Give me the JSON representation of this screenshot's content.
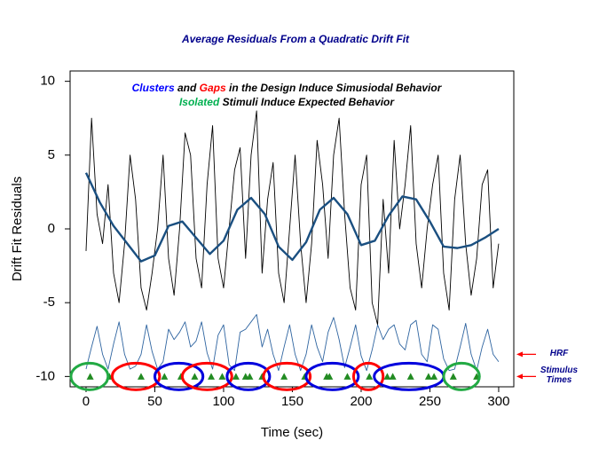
{
  "chart_data": {
    "type": "line",
    "title": "Average Residuals From a Quadratic Drift Fit",
    "x_label": "Time (sec)",
    "y_label": "Drift Fit Residuals",
    "annotation_lines": [
      [
        {
          "text": "Clusters",
          "color": "#0000ff"
        },
        {
          "text": " and ",
          "color": "#000000"
        },
        {
          "text": "Gaps",
          "color": "#ff0000"
        },
        {
          "text": " in the Design Induce Simusiodal Behavior",
          "color": "#000000"
        }
      ],
      [
        {
          "text": "Isolated",
          "color": "#00b050"
        },
        {
          "text": " Stimuli Induce Expected Behavior",
          "color": "#000000"
        }
      ]
    ],
    "side_labels": [
      {
        "text": "HRF",
        "y": -8.5
      },
      {
        "text": "Stimulus Times",
        "y": -10
      }
    ],
    "arrow_color": "#ff0000",
    "xlim": [
      -11.6,
      311
    ],
    "ylim": [
      -10.7,
      10.7
    ],
    "xticks": [
      0,
      50,
      100,
      150,
      200,
      250,
      300
    ],
    "yticks": [
      -10,
      -5,
      0,
      5,
      10
    ],
    "series": [
      {
        "color": "#000000",
        "line_width": 0.9,
        "x": [
          0,
          4,
          8,
          12,
          16,
          20,
          24,
          28,
          32,
          36,
          40,
          44,
          48,
          52,
          56,
          60,
          64,
          68,
          72,
          76,
          80,
          84,
          88,
          92,
          96,
          100,
          104,
          108,
          112,
          116,
          120,
          124,
          128,
          132,
          136,
          140,
          144,
          148,
          152,
          156,
          160,
          164,
          168,
          172,
          176,
          180,
          184,
          188,
          192,
          196,
          200,
          204,
          208,
          212,
          216,
          220,
          224,
          228,
          232,
          236,
          240,
          244,
          248,
          252,
          256,
          260,
          264,
          268,
          272,
          276,
          280,
          284,
          288,
          292,
          296,
          300
        ],
        "values": [
          -1.5,
          7.5,
          1,
          -1,
          3,
          -3,
          -5,
          -1,
          5,
          2,
          -4,
          -5.5,
          -3,
          0,
          5,
          -2,
          -4.5,
          0,
          6.5,
          5,
          -2,
          -4,
          3,
          7,
          -2,
          -4,
          0,
          4,
          5.5,
          -2,
          5,
          8,
          -3,
          2,
          4.5,
          -3,
          -5,
          0,
          5,
          -1,
          -5,
          -1,
          6,
          3,
          -2,
          5,
          7.5,
          1,
          -4,
          -5.5,
          3,
          5,
          -5,
          -6.5,
          2,
          -3,
          6,
          0,
          3,
          7,
          -1,
          -4,
          0,
          3,
          5,
          -3,
          -5.5,
          2,
          5,
          -1,
          -4.5,
          -2,
          3,
          4,
          -4,
          -1
        ]
      },
      {
        "color": "#1a4f80",
        "line_width": 2.4,
        "x": [
          0,
          10,
          20,
          30,
          40,
          50,
          60,
          70,
          80,
          90,
          100,
          110,
          120,
          130,
          140,
          150,
          160,
          170,
          180,
          190,
          200,
          210,
          220,
          230,
          240,
          250,
          260,
          270,
          280,
          290,
          300
        ],
        "values": [
          3.8,
          1.8,
          0.2,
          -1.0,
          -2.2,
          -1.8,
          0.2,
          0.5,
          -0.6,
          -1.7,
          -0.8,
          1.3,
          2.1,
          1.0,
          -1.2,
          -2.1,
          -0.9,
          1.3,
          2.1,
          1.0,
          -1.1,
          -0.8,
          0.9,
          2.2,
          2.0,
          0.5,
          -1.2,
          -1.3,
          -1.1,
          -0.6,
          0.0
        ]
      },
      {
        "color": "#2e64a0",
        "line_width": 0.9,
        "x": [
          0,
          4,
          8,
          12,
          16,
          20,
          24,
          28,
          32,
          36,
          40,
          44,
          48,
          52,
          56,
          60,
          64,
          68,
          72,
          76,
          80,
          84,
          88,
          92,
          96,
          100,
          104,
          108,
          112,
          116,
          120,
          124,
          128,
          132,
          136,
          140,
          144,
          148,
          152,
          156,
          160,
          164,
          168,
          172,
          176,
          180,
          184,
          188,
          192,
          196,
          200,
          204,
          208,
          212,
          216,
          220,
          224,
          228,
          232,
          236,
          240,
          244,
          248,
          252,
          256,
          260,
          264,
          268,
          272,
          276,
          280,
          284,
          288,
          292,
          296,
          300
        ],
        "values": [
          -9.5,
          -8,
          -6.6,
          -8.5,
          -9.5,
          -7.8,
          -6.3,
          -8.5,
          -9.5,
          -9.3,
          -8.5,
          -6.5,
          -8.3,
          -9.5,
          -9,
          -6.8,
          -7.5,
          -7,
          -6.3,
          -8,
          -7.6,
          -6.3,
          -8.4,
          -9.5,
          -7.2,
          -6.5,
          -9.2,
          -9.6,
          -7,
          -6.8,
          -6.3,
          -5.8,
          -8,
          -6.8,
          -8.5,
          -9.6,
          -8,
          -6.5,
          -8.5,
          -9.6,
          -8.5,
          -6.5,
          -8,
          -9,
          -7,
          -6,
          -7.5,
          -9.4,
          -8,
          -6.5,
          -8.6,
          -9.6,
          -8.2,
          -6.5,
          -7.5,
          -6.8,
          -6.5,
          -7.8,
          -8.2,
          -6.5,
          -6.2,
          -8.5,
          -9,
          -6.5,
          -6.8,
          -8.8,
          -9.6,
          -9.5,
          -8,
          -6.4,
          -8.5,
          -9.6,
          -8,
          -6.8,
          -8.5,
          -9
        ]
      }
    ],
    "stimulus": {
      "color": "#228b22",
      "y": -10,
      "x": [
        3,
        17,
        40,
        57,
        69,
        79,
        91,
        99,
        109,
        116,
        119,
        128,
        144,
        159,
        175,
        177,
        190,
        206,
        219,
        223,
        236,
        249,
        253,
        267,
        284
      ]
    },
    "regions": [
      {
        "start": -11,
        "end": 16,
        "color": "#22aa44"
      },
      {
        "start": 19,
        "end": 53.5,
        "color": "#ff0000"
      },
      {
        "start": 50,
        "end": 85,
        "color": "#0000dd"
      },
      {
        "start": 70,
        "end": 106,
        "color": "#ff0000"
      },
      {
        "start": 102.5,
        "end": 133.5,
        "color": "#0000dd"
      },
      {
        "start": 129,
        "end": 163,
        "color": "#ff0000"
      },
      {
        "start": 160,
        "end": 198,
        "color": "#0000dd"
      },
      {
        "start": 194.5,
        "end": 216,
        "color": "#ff0000"
      },
      {
        "start": 209.5,
        "end": 260,
        "color": "#0000dd"
      },
      {
        "start": 260,
        "end": 286,
        "color": "#22aa44"
      }
    ]
  }
}
